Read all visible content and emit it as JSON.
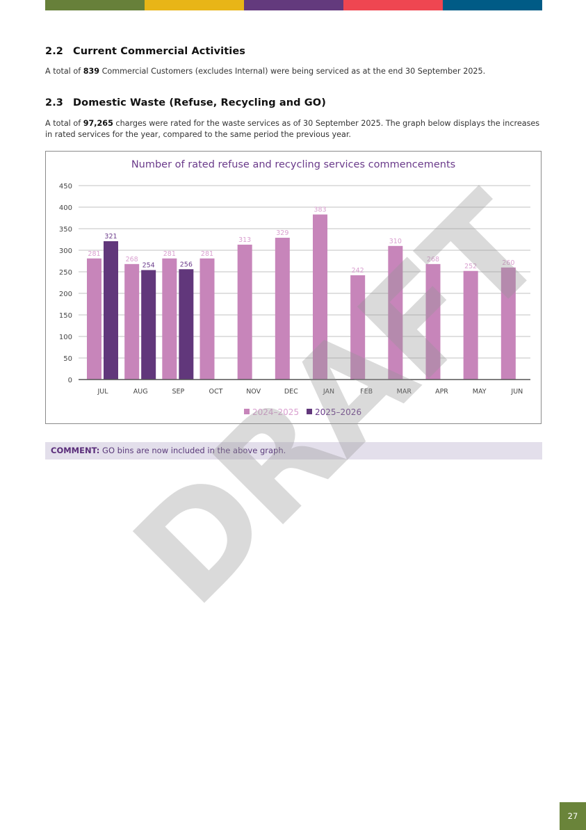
{
  "header_bar": {
    "colors": [
      "#67803a",
      "#e8b517",
      "#633a7d",
      "#ef4651",
      "#005b86"
    ]
  },
  "section_2_2": {
    "number": "2.2",
    "title": "Current Commercial Activities",
    "text_before": "A total of ",
    "highlight": "839",
    "text_after": " Commercial Customers (excludes Internal) were being serviced as at the end 30 September 2025."
  },
  "section_2_3": {
    "number": "2.3",
    "title": "Domestic Waste (Refuse, Recycling and GO)",
    "text_before": "A total of ",
    "highlight": "97,265",
    "text_after": " charges were rated for the waste services as of 30 September 2025. The graph below displays the increases in rated services for the year, compared to the same period the previous year."
  },
  "chart_data": {
    "type": "bar",
    "title": "Number of rated refuse and recycling services commencements",
    "xlabel": "",
    "ylabel": "",
    "categories": [
      "JUL",
      "AUG",
      "SEP",
      "OCT",
      "NOV",
      "DEC",
      "JAN",
      "FEB",
      "MAR",
      "APR",
      "MAY",
      "JUN"
    ],
    "series": [
      {
        "name": "2024–2025",
        "color": "#c785ba",
        "label_color": "#d99fcf",
        "values": [
          281,
          268,
          281,
          281,
          313,
          329,
          383,
          242,
          310,
          268,
          252,
          260
        ]
      },
      {
        "name": "2025–2026",
        "color": "#61377b",
        "label_color": "#6a3a8a",
        "values": [
          321,
          254,
          256,
          null,
          null,
          null,
          null,
          null,
          null,
          null,
          null,
          null
        ]
      }
    ],
    "yticks": [
      0,
      50,
      100,
      150,
      200,
      250,
      300,
      350,
      400,
      450
    ],
    "ylim": [
      0,
      450
    ],
    "grid": true,
    "legend_position": "bottom"
  },
  "comment": {
    "label": "COMMENT:",
    "text": " GO bins are now included in the above graph."
  },
  "watermark": "DRAFT",
  "page_number": "27"
}
